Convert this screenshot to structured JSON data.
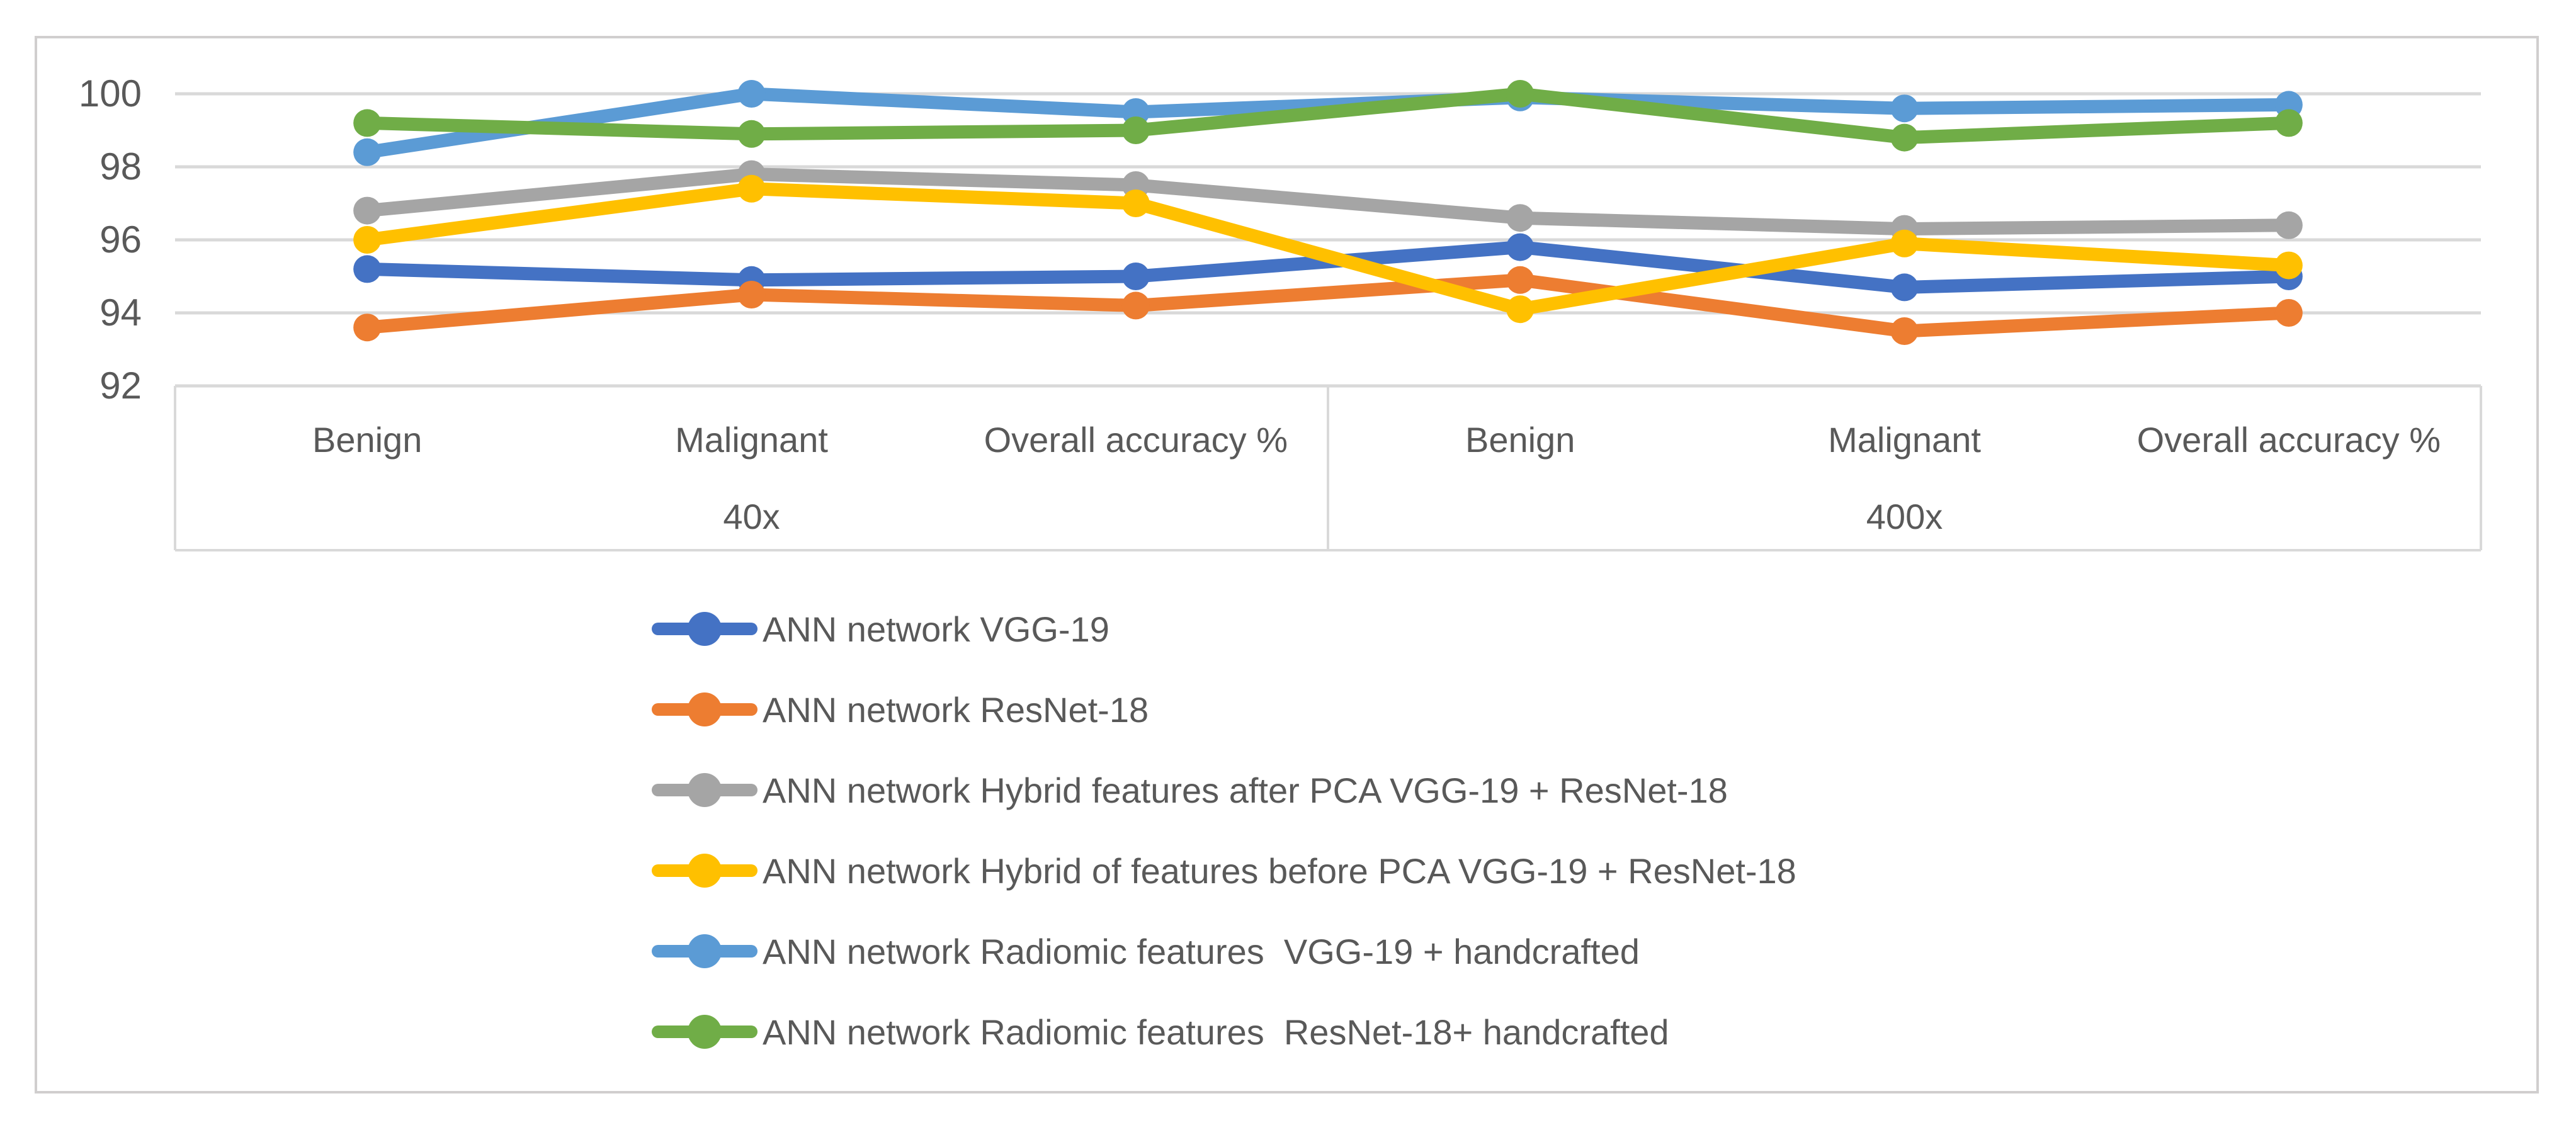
{
  "figure": {
    "background": "#FFFFFF",
    "border_color": "#D0CECE",
    "gridline_color": "#D9D9D9",
    "text_color": "#595959"
  },
  "chart_data": {
    "type": "line",
    "title": "",
    "grid": true,
    "legend_position": "bottom-left",
    "y_axis": {
      "min": 92,
      "max": 100,
      "ticks": [
        100,
        98,
        96,
        94,
        92
      ]
    },
    "x_axis": {
      "groups": [
        {
          "label": "40x",
          "categories": [
            "Benign",
            "Malignant",
            "Overall accuracy %"
          ]
        },
        {
          "label": "400x",
          "categories": [
            "Benign",
            "Malignant",
            "Overall accuracy %"
          ]
        }
      ]
    },
    "series": [
      {
        "name": "ANN network VGG-19",
        "color": "#4472C4",
        "values": [
          95.2,
          94.9,
          95.0,
          95.8,
          94.7,
          95.0
        ]
      },
      {
        "name": "ANN network ResNet-18",
        "color": "#ED7D31",
        "values": [
          93.6,
          94.5,
          94.2,
          94.9,
          93.5,
          94.0
        ]
      },
      {
        "name": "ANN network Hybrid features after PCA VGG-19 + ResNet-18",
        "color": "#A5A5A5",
        "values": [
          96.8,
          97.8,
          97.5,
          96.6,
          96.3,
          96.4
        ]
      },
      {
        "name": "ANN network Hybrid of features before PCA VGG-19 + ResNet-18",
        "color": "#FFC000",
        "values": [
          96.0,
          97.4,
          97.0,
          94.1,
          95.9,
          95.3
        ]
      },
      {
        "name": "ANN network Radiomic features  VGG-19 + handcrafted",
        "color": "#5B9BD5",
        "values": [
          98.4,
          100.0,
          99.5,
          99.9,
          99.6,
          99.7
        ]
      },
      {
        "name": "ANN network Radiomic features  ResNet-18+ handcrafted",
        "color": "#70AD47",
        "values": [
          99.2,
          98.9,
          99.0,
          100.0,
          98.8,
          99.2
        ]
      }
    ]
  }
}
